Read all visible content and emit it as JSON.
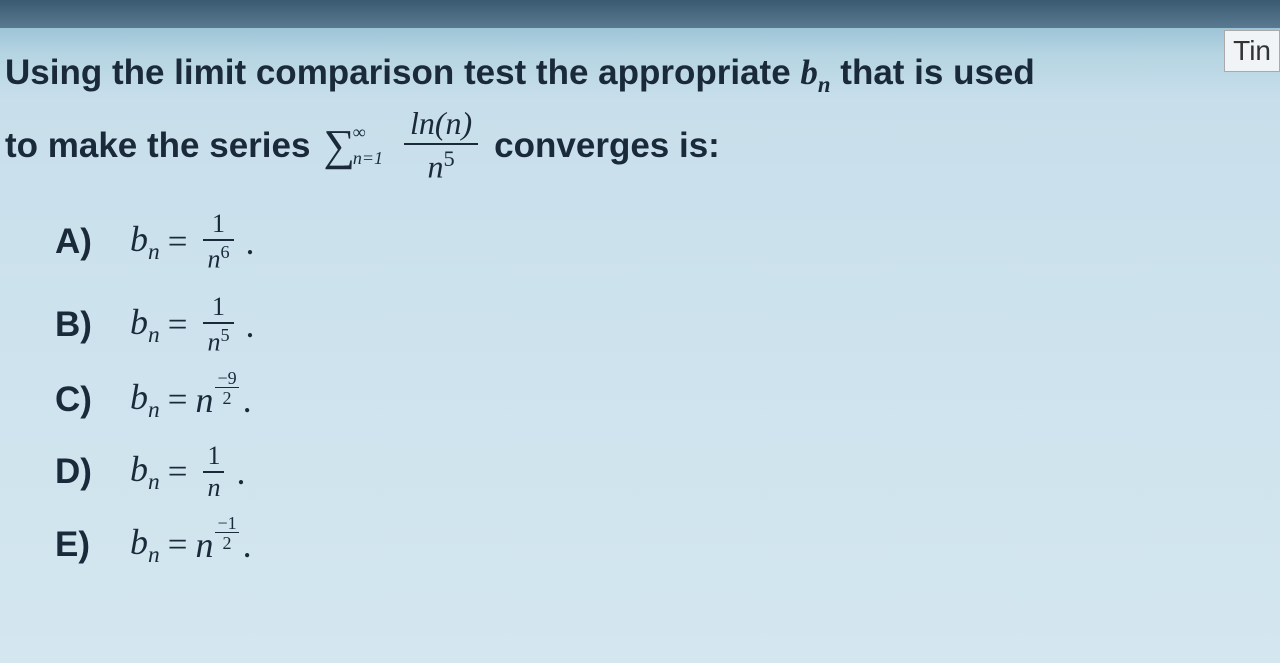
{
  "corner_label": "Tin",
  "question": {
    "line1_parts": {
      "text_before": "Using the limit comparison test the appropriate ",
      "bvar": "b",
      "bsub": "n",
      "text_after": " that is used"
    },
    "line2_parts": {
      "text_before": "to make the series ",
      "sigma_top": "∞",
      "sigma_bottom": "n=1",
      "frac_num": "ln(n)",
      "frac_den_base": "n",
      "frac_den_exp": "5",
      "text_after": " converges is:"
    }
  },
  "answers": {
    "A": {
      "label": "A)",
      "lhs": "b",
      "lhs_sub": "n",
      "frac_num": "1",
      "frac_den_base": "n",
      "frac_den_exp": "6"
    },
    "B": {
      "label": "B)",
      "lhs": "b",
      "lhs_sub": "n",
      "frac_num": "1",
      "frac_den_base": "n",
      "frac_den_exp": "5"
    },
    "C": {
      "label": "C)",
      "lhs": "b",
      "lhs_sub": "n",
      "base": "n",
      "exp_num": "−9",
      "exp_den": "2"
    },
    "D": {
      "label": "D)",
      "lhs": "b",
      "lhs_sub": "n",
      "frac_num": "1",
      "frac_den_base": "n",
      "frac_den_exp": ""
    },
    "E": {
      "label": "E)",
      "lhs": "b",
      "lhs_sub": "n",
      "base": "n",
      "exp_num": "−1",
      "exp_den": "2"
    }
  },
  "colors": {
    "text": "#1a2a3a",
    "bg_top": "#6a9bb5",
    "bg_bottom": "#d4e7f0"
  }
}
